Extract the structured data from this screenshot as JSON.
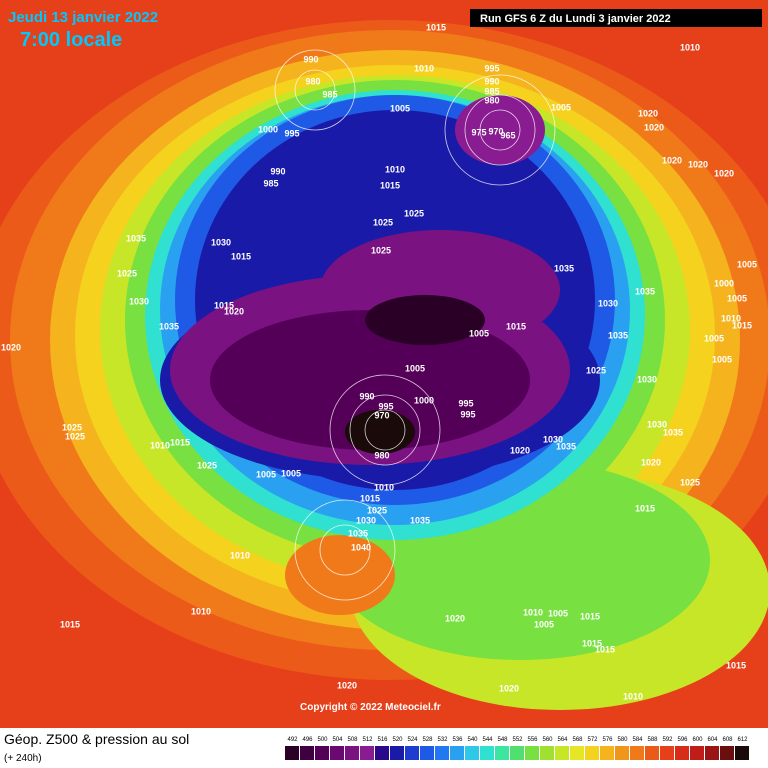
{
  "header": {
    "date": "Jeudi 13 janvier 2022",
    "time": "7:00 locale",
    "run": "Run GFS 6 Z du Lundi 3 janvier 2022"
  },
  "copyright": "Copyright © 2022 Meteociel.fr",
  "legend": {
    "title": "Géop. Z500 & pression au sol",
    "subtitle": "(+ 240h)",
    "ticks": [
      492,
      496,
      500,
      504,
      508,
      512,
      516,
      520,
      524,
      528,
      532,
      536,
      540,
      544,
      548,
      552,
      556,
      560,
      564,
      568,
      572,
      576,
      580,
      584,
      588,
      592,
      596,
      600,
      604,
      608,
      612
    ],
    "colors": [
      "#2a0026",
      "#3e0040",
      "#550058",
      "#6a0a70",
      "#7a1282",
      "#8a1c92",
      "#2a0a8a",
      "#1a1aa8",
      "#1e3cd0",
      "#1e5ae6",
      "#2278f0",
      "#2aa0f0",
      "#2ec8e8",
      "#30e0d0",
      "#3ce6a0",
      "#50e070",
      "#78e040",
      "#a0e030",
      "#c8e628",
      "#e6e628",
      "#f5d21e",
      "#f5b41e",
      "#f0961a",
      "#f07a1a",
      "#ec5a1a",
      "#e6401a",
      "#d82c1a",
      "#c01c1a",
      "#9a1414",
      "#6a0e0e",
      "#1a0a0a"
    ]
  },
  "isobars": [
    "990",
    "980",
    "985",
    "1000",
    "995",
    "990",
    "985",
    "1010",
    "995",
    "990",
    "985",
    "980",
    "1005",
    "975",
    "970",
    "965",
    "1005",
    "1010",
    "1015",
    "1025",
    "1025",
    "1025",
    "1015",
    "1030",
    "1035",
    "1025",
    "1030",
    "1015",
    "1020",
    "1035",
    "1020",
    "1005",
    "1015",
    "1035",
    "1030",
    "1035",
    "1035",
    "1025",
    "1030",
    "1005",
    "990",
    "995",
    "1000",
    "995",
    "995",
    "970",
    "980",
    "1005",
    "1005",
    "1025",
    "1015",
    "1010",
    "1025",
    "1025",
    "1010",
    "1015",
    "1025",
    "1030",
    "1035",
    "1040",
    "1035",
    "1010",
    "1010",
    "1015",
    "1020",
    "1010",
    "1005",
    "1015",
    "1005",
    "1015",
    "1015",
    "1020",
    "1020",
    "1010",
    "1015",
    "1025",
    "1015",
    "1020",
    "1030",
    "1035",
    "1035",
    "1030",
    "1020",
    "1015",
    "1010",
    "1020",
    "1020",
    "1020",
    "1020",
    "1020",
    "1005",
    "1000",
    "1005",
    "1010",
    "1015",
    "1005",
    "1005"
  ]
}
